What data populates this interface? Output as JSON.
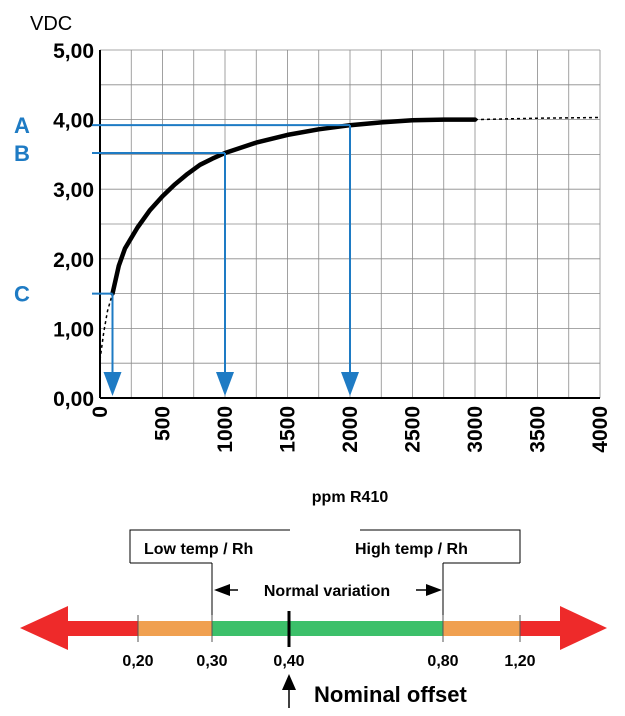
{
  "chart_data": {
    "type": "line",
    "y_unit_label": "VDC",
    "xlabel": "ppm R410",
    "xlim": [
      0,
      4000
    ],
    "ylim": [
      0,
      5
    ],
    "grid": true,
    "x_ticks": [
      0,
      500,
      1000,
      1500,
      2000,
      2500,
      3000,
      3500,
      4000
    ],
    "x_tick_labels": [
      "0",
      "500",
      "1000",
      "1500",
      "2000",
      "2500",
      "3000",
      "3500",
      "4000"
    ],
    "y_ticks": [
      0,
      1,
      2,
      3,
      4,
      5
    ],
    "y_tick_labels": [
      "0,00",
      "1,00",
      "2,00",
      "3,00",
      "4,00",
      "5,00"
    ],
    "curve": {
      "x": [
        100,
        150,
        200,
        300,
        400,
        500,
        600,
        700,
        800,
        900,
        1000,
        1250,
        1500,
        1750,
        2000,
        2250,
        2500,
        2750,
        3000
      ],
      "y": [
        1.5,
        1.9,
        2.15,
        2.45,
        2.7,
        2.9,
        3.07,
        3.22,
        3.35,
        3.44,
        3.52,
        3.67,
        3.78,
        3.86,
        3.92,
        3.96,
        3.99,
        4.0,
        4.0
      ]
    },
    "curve_dotted_start": {
      "x": [
        0,
        30,
        60,
        100
      ],
      "y": [
        0.55,
        0.95,
        1.25,
        1.5
      ]
    },
    "curve_dotted_end": {
      "x": [
        3000,
        3500,
        4000
      ],
      "y": [
        4.0,
        4.02,
        4.03
      ]
    },
    "markers": [
      {
        "label": "A",
        "x": 2000,
        "y": 3.92
      },
      {
        "label": "B",
        "x": 1000,
        "y": 3.52
      },
      {
        "label": "C",
        "x": 100,
        "y": 1.5
      }
    ],
    "marker_color": "#1e7bc4"
  },
  "offset_scale": {
    "low_label": "Low temp / Rh",
    "high_label": "High temp / Rh",
    "variation_label": "Normal variation",
    "nominal_label": "Nominal offset",
    "ticks": [
      "0,20",
      "0,30",
      "0,40",
      "0,80",
      "1,20"
    ],
    "colors": {
      "red": "#ee2a2a",
      "orange": "#f0a050",
      "green": "#3cc06a"
    }
  }
}
